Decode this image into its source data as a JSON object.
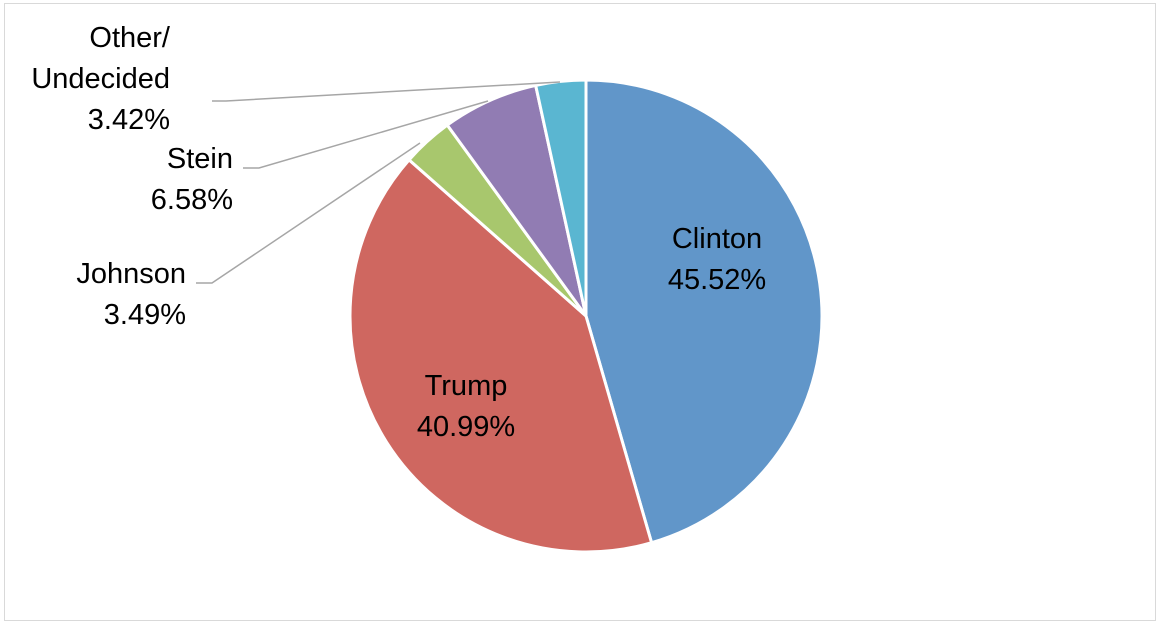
{
  "chart_data": {
    "type": "pie",
    "title": "",
    "start_angle_deg": 0,
    "direction": "clockwise",
    "slices": [
      {
        "name": "Clinton",
        "value": 45.52,
        "label": "45.52%",
        "name_lines": [
          "Clinton"
        ],
        "color": "#6196c9",
        "label_mode": "inside"
      },
      {
        "name": "Trump",
        "value": 40.99,
        "label": "40.99%",
        "name_lines": [
          "Trump"
        ],
        "color": "#cf6760",
        "label_mode": "inside"
      },
      {
        "name": "Johnson",
        "value": 3.49,
        "label": "3.49%",
        "name_lines": [
          "Johnson"
        ],
        "color": "#a8c76d",
        "label_mode": "outside"
      },
      {
        "name": "Stein",
        "value": 6.58,
        "label": "6.58%",
        "name_lines": [
          "Stein"
        ],
        "color": "#917cb3",
        "label_mode": "outside"
      },
      {
        "name": "Other/ Undecided",
        "value": 3.42,
        "label": "3.42%",
        "name_lines": [
          "Other/",
          "Undecided"
        ],
        "color": "#5ab6d1",
        "label_mode": "outside"
      }
    ],
    "legend": "none",
    "data_labels": "category name and percentage"
  }
}
